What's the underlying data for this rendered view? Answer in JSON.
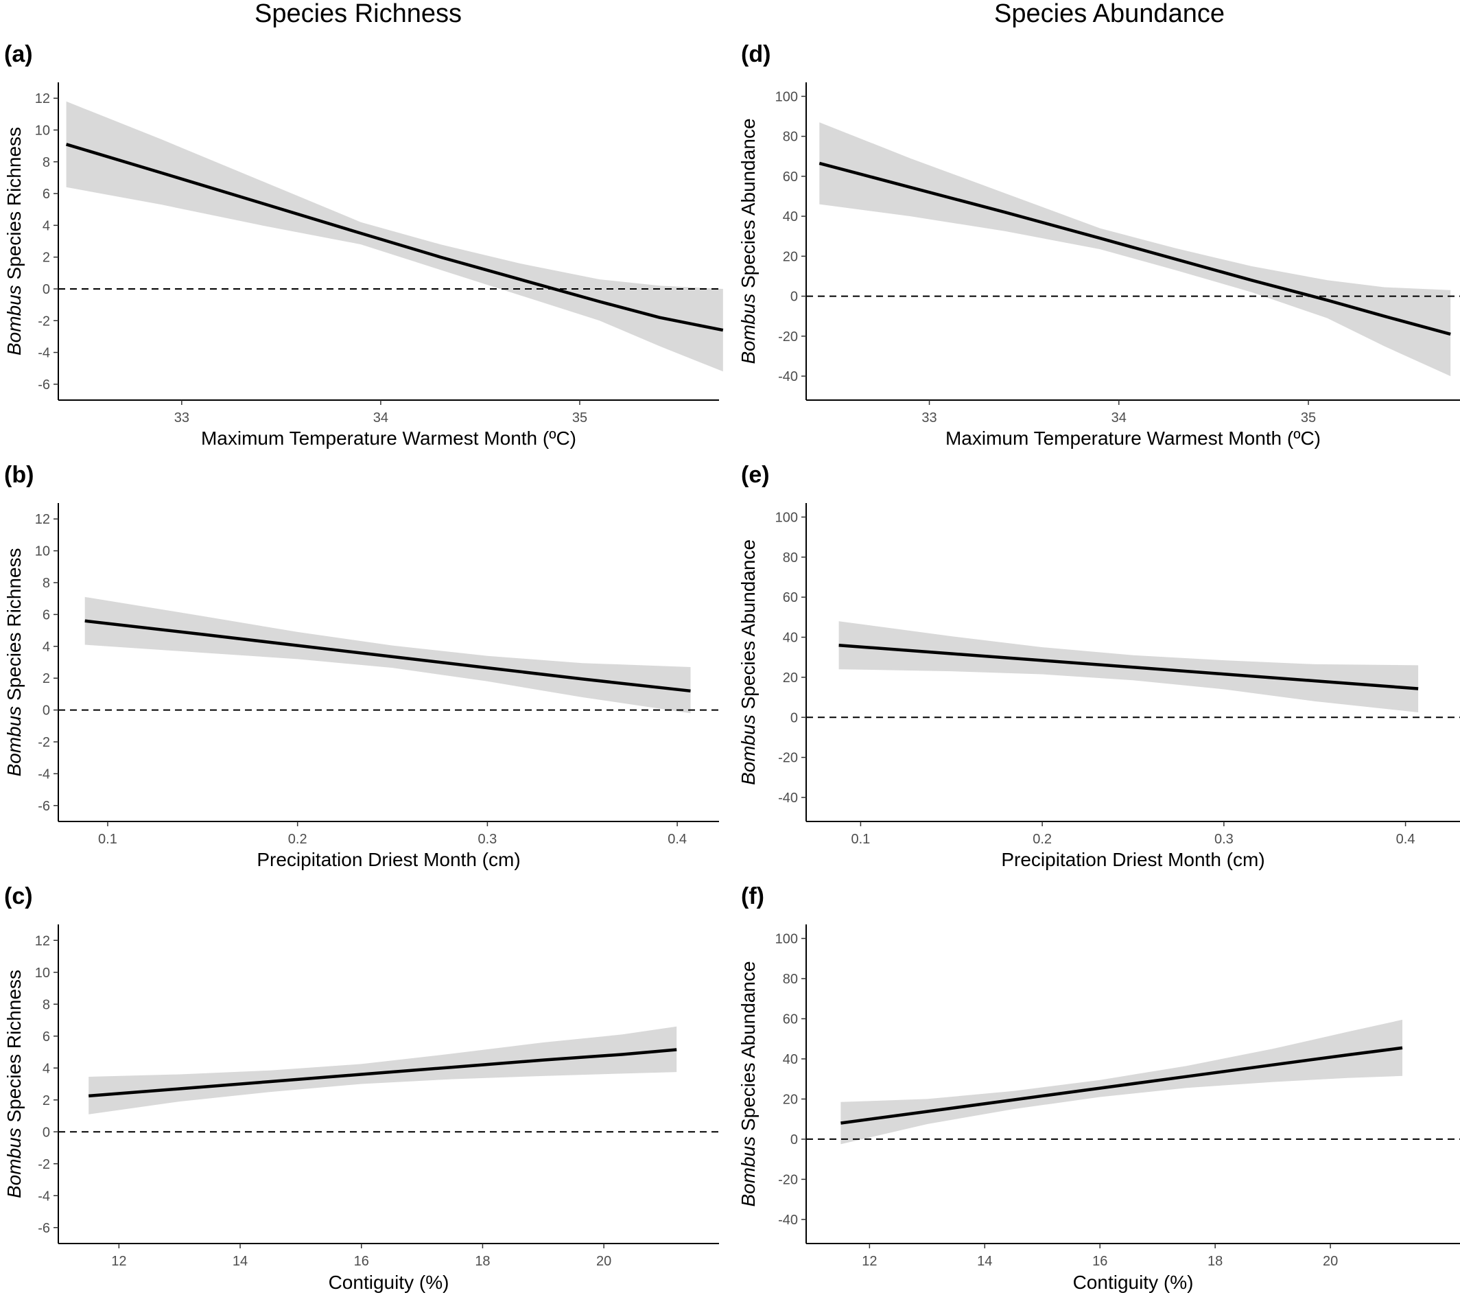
{
  "column_titles": [
    "Species Richness",
    "Species Abundance"
  ],
  "chart_data": [
    {
      "panel": "(a)",
      "type": "line",
      "ylabel_italic": "Bombus",
      "ylabel_rest": "Species Richness",
      "xlabel": "Maximum Temperature Warmest Month (ºC)",
      "xlim": [
        32.38,
        35.7
      ],
      "ylim": [
        -7,
        13
      ],
      "xticks": [
        33,
        34,
        35
      ],
      "xtick_labels": [
        "33",
        "34",
        "35"
      ],
      "yticks": [
        -6,
        -4,
        -2,
        0,
        2,
        4,
        6,
        8,
        10,
        12
      ],
      "ribbon_x": [
        32.42,
        32.9,
        33.4,
        33.9,
        34.3,
        34.7,
        35.1,
        35.4,
        35.72
      ],
      "fit_y": [
        9.1,
        7.3,
        5.4,
        3.5,
        2.0,
        0.6,
        -0.8,
        -1.8,
        -2.6
      ],
      "lower": [
        6.4,
        5.3,
        4.0,
        2.8,
        1.2,
        -0.4,
        -2.0,
        -3.6,
        -5.2
      ],
      "upper": [
        11.8,
        9.4,
        6.8,
        4.2,
        2.8,
        1.6,
        0.6,
        0.2,
        0.0
      ],
      "reference_line_y": 0
    },
    {
      "panel": "(b)",
      "type": "line",
      "ylabel_italic": "Bombus",
      "ylabel_rest": "Species Richness",
      "xlabel": "Precipitation Driest Month (cm)",
      "xlim": [
        0.074,
        0.422
      ],
      "ylim": [
        -7,
        13
      ],
      "xticks": [
        0.1,
        0.2,
        0.3,
        0.4
      ],
      "xtick_labels": [
        "0.1",
        "0.2",
        "0.3",
        "0.4"
      ],
      "yticks": [
        -6,
        -4,
        -2,
        0,
        2,
        4,
        6,
        8,
        10,
        12
      ],
      "ribbon_x": [
        0.088,
        0.15,
        0.2,
        0.25,
        0.3,
        0.35,
        0.407
      ],
      "fit_y": [
        5.6,
        4.75,
        4.05,
        3.35,
        2.65,
        1.95,
        1.2
      ],
      "lower": [
        4.1,
        3.6,
        3.2,
        2.65,
        1.8,
        0.8,
        -0.2
      ],
      "upper": [
        7.1,
        5.9,
        4.9,
        4.05,
        3.4,
        2.95,
        2.7
      ],
      "reference_line_y": 0
    },
    {
      "panel": "(c)",
      "type": "line",
      "ylabel_italic": "Bombus",
      "ylabel_rest": "Species Richness",
      "xlabel": "Contiguity (%)",
      "xlim": [
        11.0,
        21.9
      ],
      "ylim": [
        -7,
        13
      ],
      "xticks": [
        12,
        14,
        16,
        18,
        20
      ],
      "xtick_labels": [
        "12",
        "14",
        "16",
        "18",
        "20"
      ],
      "yticks": [
        -6,
        -4,
        -2,
        0,
        2,
        4,
        6,
        8,
        10,
        12
      ],
      "ribbon_x": [
        11.5,
        13,
        14.5,
        16,
        17.5,
        19,
        20.3,
        21.2
      ],
      "fit_y": [
        2.25,
        2.7,
        3.15,
        3.6,
        4.05,
        4.5,
        4.85,
        5.15
      ],
      "lower": [
        1.1,
        1.9,
        2.5,
        3.0,
        3.3,
        3.5,
        3.65,
        3.75
      ],
      "upper": [
        3.45,
        3.6,
        3.85,
        4.25,
        4.9,
        5.6,
        6.1,
        6.6
      ],
      "reference_line_y": 0
    },
    {
      "panel": "(d)",
      "type": "line",
      "ylabel_italic": "Bombus",
      "ylabel_rest": "Species Abundance",
      "xlabel": "Maximum Temperature Warmest Month (ºC)",
      "xlim": [
        32.35,
        35.8
      ],
      "ylim": [
        -52,
        107
      ],
      "xticks": [
        33,
        34,
        35
      ],
      "xtick_labels": [
        "33",
        "34",
        "35"
      ],
      "yticks": [
        -40,
        -20,
        0,
        20,
        40,
        60,
        80,
        100
      ],
      "ribbon_x": [
        32.42,
        32.9,
        33.4,
        33.9,
        34.3,
        34.7,
        35.1,
        35.4,
        35.75
      ],
      "fit_y": [
        66.5,
        54.5,
        42.0,
        29.0,
        18.5,
        8.0,
        -2.0,
        -10.0,
        -19.0
      ],
      "lower": [
        46.0,
        40.0,
        32.5,
        23.5,
        13.0,
        2.0,
        -11.0,
        -25.0,
        -40.0
      ],
      "upper": [
        87.0,
        69.0,
        51.5,
        34.0,
        24.0,
        15.0,
        8.0,
        4.5,
        3.0
      ],
      "reference_line_y": 0
    },
    {
      "panel": "(e)",
      "type": "line",
      "ylabel_italic": "Bombus",
      "ylabel_rest": "Species Abundance",
      "xlabel": "Precipitation Driest Month (cm)",
      "xlim": [
        0.07,
        0.43
      ],
      "ylim": [
        -52,
        107
      ],
      "xticks": [
        0.1,
        0.2,
        0.3,
        0.4
      ],
      "xtick_labels": [
        "0.1",
        "0.2",
        "0.3",
        "0.4"
      ],
      "yticks": [
        -40,
        -20,
        0,
        20,
        40,
        60,
        80,
        100
      ],
      "ribbon_x": [
        0.088,
        0.15,
        0.2,
        0.25,
        0.3,
        0.35,
        0.407
      ],
      "fit_y": [
        36.0,
        31.8,
        28.4,
        25.0,
        21.6,
        18.2,
        14.3
      ],
      "lower": [
        24.0,
        23.0,
        21.5,
        18.5,
        14.0,
        8.0,
        2.5
      ],
      "upper": [
        48.0,
        40.5,
        35.0,
        31.0,
        28.5,
        26.5,
        26.0
      ],
      "reference_line_y": 0
    },
    {
      "panel": "(f)",
      "type": "line",
      "ylabel_italic": "Bombus",
      "ylabel_rest": "Species Abundance",
      "xlabel": "Contiguity (%)",
      "xlim": [
        10.9,
        22.25
      ],
      "ylim": [
        -52,
        107
      ],
      "xticks": [
        12,
        14,
        16,
        18,
        20
      ],
      "xtick_labels": [
        "12",
        "14",
        "16",
        "18",
        "20"
      ],
      "yticks": [
        -40,
        -20,
        0,
        20,
        40,
        60,
        80,
        100
      ],
      "ribbon_x": [
        11.5,
        13,
        14.5,
        16,
        17.5,
        19,
        20.3,
        21.25
      ],
      "fit_y": [
        8.0,
        13.8,
        19.6,
        25.4,
        31.2,
        37.0,
        42.0,
        45.5
      ],
      "lower": [
        -2.5,
        7.5,
        15.0,
        21.0,
        25.5,
        28.5,
        30.5,
        31.5
      ],
      "upper": [
        18.5,
        20.0,
        24.0,
        29.5,
        36.5,
        45.0,
        53.5,
        59.5
      ],
      "reference_line_y": 0
    }
  ]
}
